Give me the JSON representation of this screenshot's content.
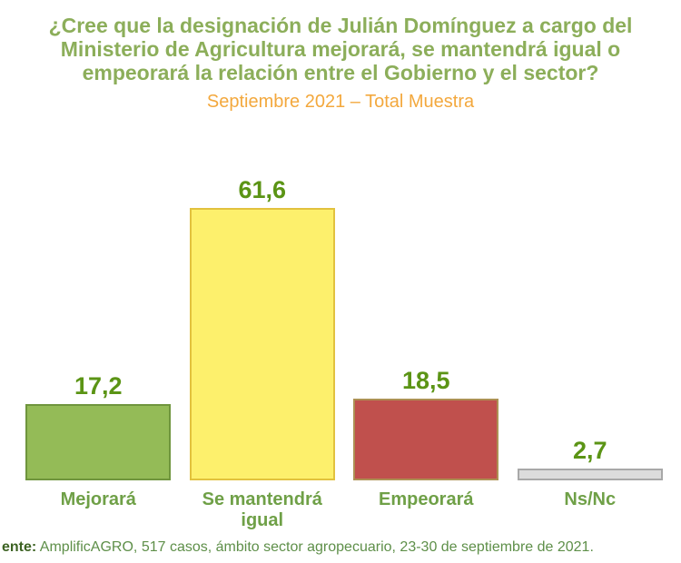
{
  "title": {
    "lines": [
      "¿Cree que la designación de Julián Domínguez a cargo del",
      "Ministerio de Agricultura mejorará, se mantendrá igual o",
      "empeorará la relación entre el Gobierno y el sector?"
    ],
    "subtitle": "Septiembre 2021 – Total Muestra"
  },
  "chart_data": {
    "type": "bar",
    "title": "¿Cree que la designación de Julián Domínguez a cargo del Ministerio de Agricultura mejorará, se mantendrá igual o empeorará la relación entre el Gobierno y el sector?",
    "subtitle": "Septiembre 2021 – Total Muestra",
    "categories": [
      "Mejorará",
      "Se mantendrá igual",
      "Empeorará",
      "Ns/Nc"
    ],
    "values": [
      17.2,
      61.6,
      18.5,
      2.7
    ],
    "value_labels": [
      "17,2",
      "61,6",
      "18,5",
      "2,7"
    ],
    "bar_fills": [
      "#94bb57",
      "#fdf06c",
      "#c0504d",
      "#dcdcdc"
    ],
    "bar_borders": [
      "#6f953d",
      "#e2c23e",
      "#ad9054",
      "#a8a8a8"
    ],
    "value_label_color": "#5b9415",
    "category_label_color": "#6fa047",
    "grid": false,
    "axes_visible": false,
    "legend": false,
    "ylim": [
      0,
      70
    ]
  },
  "footer": {
    "source_prefix": "ente:",
    "source_text": "AmplificAGRO, 517 casos, ámbito sector agropecuario, 23-30 de septiembre de 2021."
  },
  "colors": {
    "title_green": "#8cae5a",
    "subtitle_orange": "#f3a83d",
    "footer_green": "#5e8f49",
    "footer_prefix_green": "#3c6222",
    "background": "#ffffff"
  }
}
